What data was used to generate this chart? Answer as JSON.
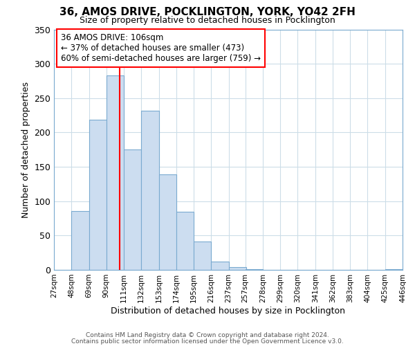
{
  "title": "36, AMOS DRIVE, POCKLINGTON, YORK, YO42 2FH",
  "subtitle": "Size of property relative to detached houses in Pocklington",
  "xlabel": "Distribution of detached houses by size in Pocklington",
  "ylabel": "Number of detached properties",
  "bar_color": "#ccddf0",
  "bar_edge_color": "#7aaad0",
  "grid_color": "#ccdde8",
  "annotation_line1": "36 AMOS DRIVE: 106sqm",
  "annotation_line2": "← 37% of detached houses are smaller (473)",
  "annotation_line3": "60% of semi-detached houses are larger (759) →",
  "vline_x": 106,
  "vline_color": "red",
  "bin_edges": [
    27,
    48,
    69,
    90,
    111,
    132,
    153,
    174,
    195,
    216,
    237,
    257,
    278,
    299,
    320,
    341,
    362,
    383,
    404,
    425,
    446
  ],
  "bin_labels": [
    "27sqm",
    "48sqm",
    "69sqm",
    "90sqm",
    "111sqm",
    "132sqm",
    "153sqm",
    "174sqm",
    "195sqm",
    "216sqm",
    "237sqm",
    "257sqm",
    "278sqm",
    "299sqm",
    "320sqm",
    "341sqm",
    "362sqm",
    "383sqm",
    "404sqm",
    "425sqm",
    "446sqm"
  ],
  "counts": [
    0,
    86,
    219,
    283,
    175,
    232,
    139,
    85,
    41,
    12,
    4,
    1,
    0,
    0,
    0,
    0,
    0,
    0,
    0,
    1
  ],
  "ylim": [
    0,
    350
  ],
  "yticks": [
    0,
    50,
    100,
    150,
    200,
    250,
    300,
    350
  ],
  "footer1": "Contains HM Land Registry data © Crown copyright and database right 2024.",
  "footer2": "Contains public sector information licensed under the Open Government Licence v3.0."
}
